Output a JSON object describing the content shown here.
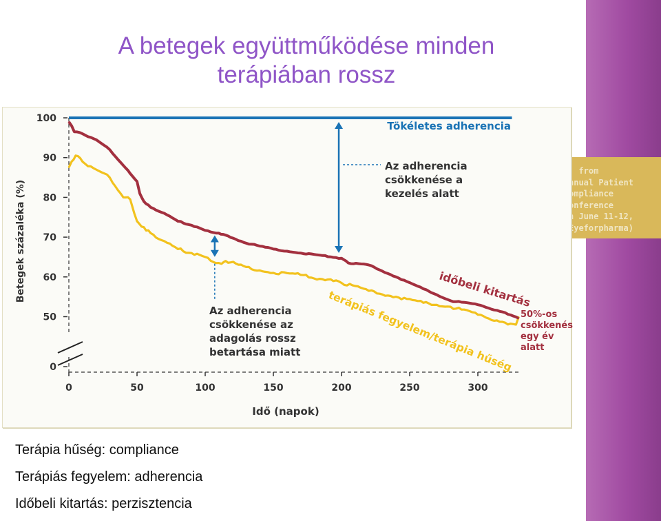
{
  "slide": {
    "title_line1": "A betegek együttműködése minden",
    "title_line2": "terápiában rossz"
  },
  "side_note": {
    "lines": [
      "  from",
      "nnual Patient",
      "ompliance",
      "onference",
      "n June 11-12,",
      "Eyeforpharma)"
    ]
  },
  "chart_data": {
    "type": "line",
    "xlabel": "Idő (napok)",
    "ylabel": "Betegek százaléka (%)",
    "xlim": [
      0,
      330
    ],
    "ylim": [
      0,
      100
    ],
    "x_ticks": [
      0,
      50,
      100,
      150,
      200,
      250,
      300
    ],
    "y_ticks": [
      0,
      50,
      60,
      70,
      80,
      90,
      100
    ],
    "axis_break": true,
    "series": [
      {
        "name": "Tökéletes adherencia",
        "color": "#1a73b5",
        "x": [
          0,
          325
        ],
        "y": [
          100,
          100
        ]
      },
      {
        "name": "időbeli kitartás",
        "color": "#a3303f",
        "x": [
          0,
          2,
          4,
          10,
          20,
          30,
          40,
          45,
          50,
          52,
          55,
          60,
          70,
          80,
          90,
          100,
          110,
          115,
          130,
          150,
          170,
          200,
          205,
          220,
          240,
          260,
          280,
          300,
          320,
          330
        ],
        "y": [
          99,
          98,
          96.5,
          96,
          94.5,
          92,
          88,
          86,
          84,
          81,
          79,
          77.5,
          76,
          74,
          73,
          71.7,
          71,
          70.5,
          68.5,
          67,
          66,
          64.7,
          63.5,
          63,
          60,
          57,
          54,
          53,
          51,
          49.6
        ]
      },
      {
        "name": "terápiás fegyelem/terápia hűség",
        "color": "#f2c21e",
        "x": [
          0,
          2,
          5,
          10,
          20,
          30,
          40,
          45,
          48,
          50,
          55,
          60,
          70,
          80,
          90,
          100,
          110,
          112,
          115,
          130,
          150,
          170,
          200,
          220,
          240,
          260,
          280,
          300,
          320,
          328,
          330
        ],
        "y": [
          87.5,
          89,
          90.5,
          89,
          87,
          85,
          80,
          79.5,
          76,
          74,
          72.5,
          71,
          69,
          67,
          66,
          65,
          63.5,
          63.3,
          64,
          62.5,
          61,
          60.5,
          58.5,
          56.5,
          55,
          53.5,
          52.5,
          50.5,
          48.5,
          48,
          50
        ]
      }
    ],
    "annotations": {
      "perfect_label": "Tökéletes adherencia",
      "treatment_drop": [
        "Az adherencia",
        "csökkenése a",
        "kezelés alatt"
      ],
      "dosing_drop": [
        "Az adherencia",
        "csökkenése az",
        "adagolás rossz",
        "betartása miatt"
      ],
      "persistence_label": "időbeli kitartás",
      "compliance_label": "terápiás fegyelem/terápia hűség",
      "year_drop": [
        "50%-os",
        "csökkenés",
        "egy év",
        "alatt"
      ]
    },
    "colors": {
      "perfect": "#1a73b5",
      "persistence": "#a3303f",
      "compliance": "#f2c21e",
      "arrow": "#1a73b5",
      "annotation_text": "#333333"
    }
  },
  "glossary": [
    "Terápia hűség: compliance",
    "Terápiás fegyelem: adherencia",
    "Időbeli kitartás: perzisztencia"
  ]
}
